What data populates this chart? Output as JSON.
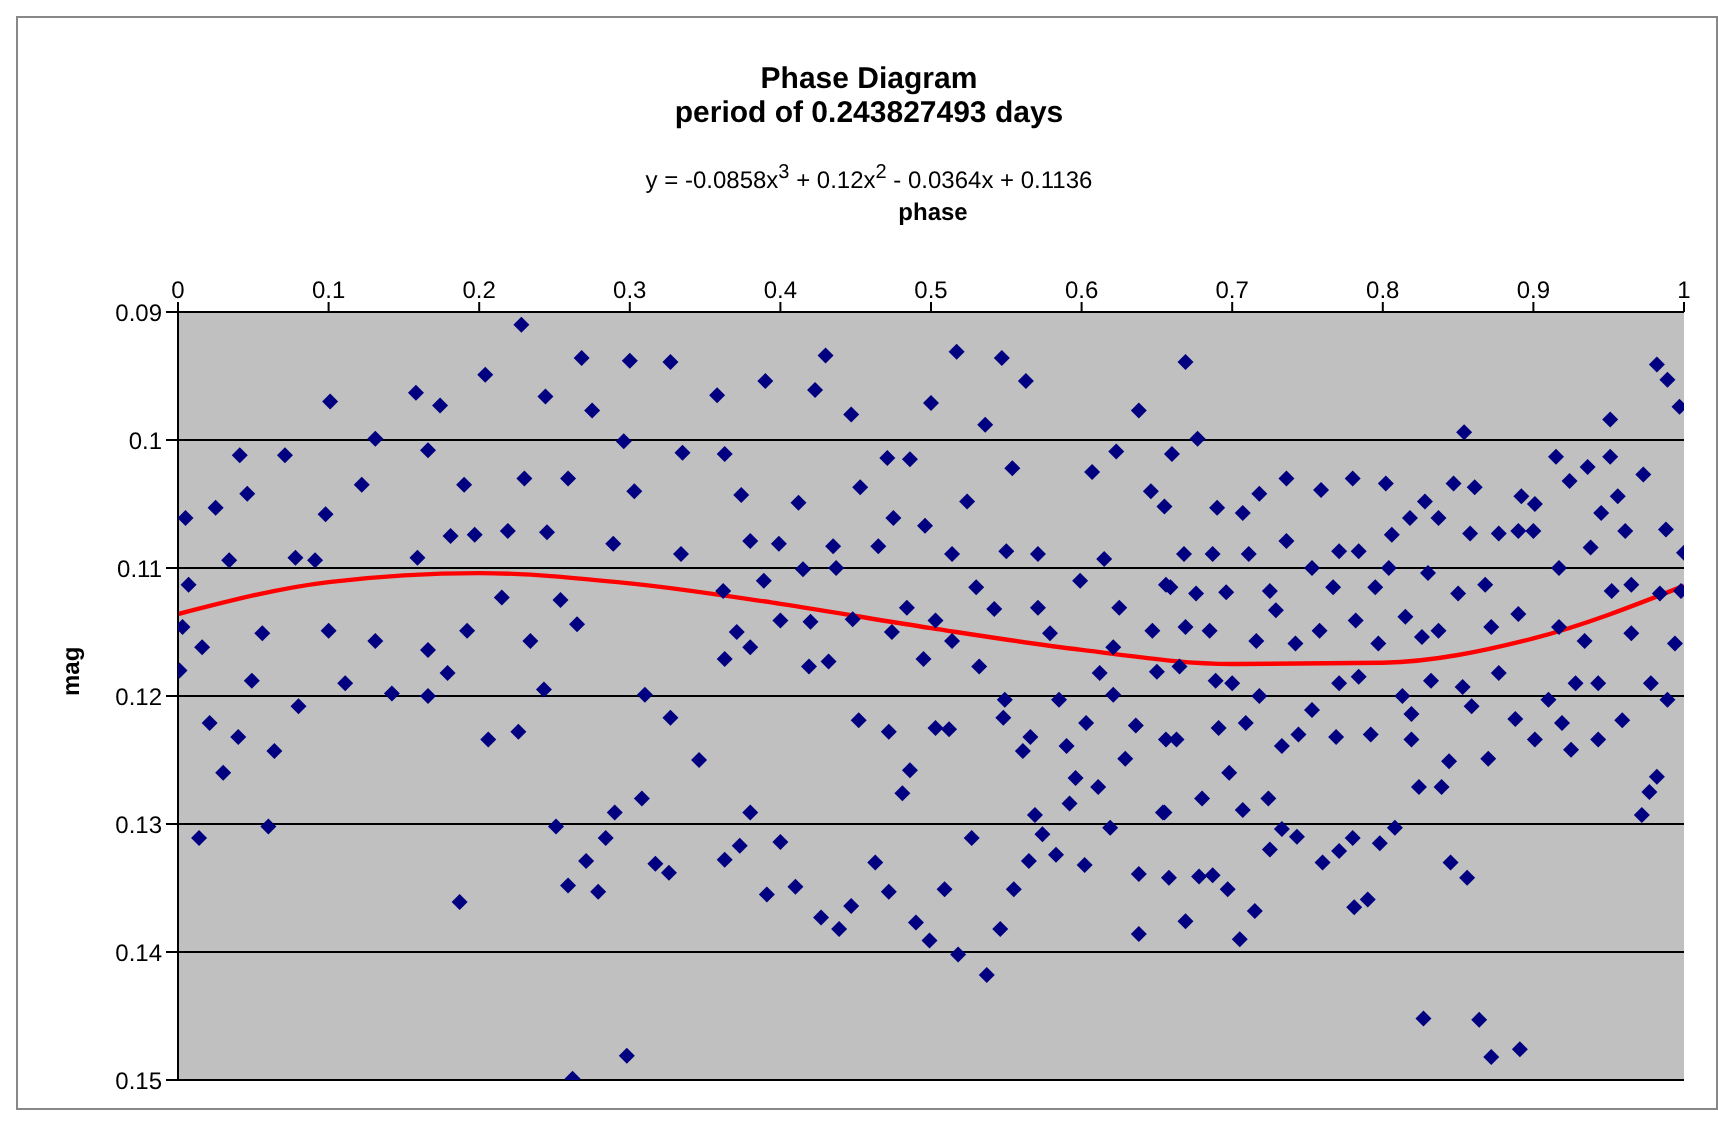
{
  "chart_data": {
    "type": "scatter",
    "title": "Phase Diagram",
    "subtitle": "period of 0.243827493 days",
    "xlabel": "phase",
    "ylabel": "mag",
    "annotations": [
      "y = -0.0858x$^{3}$ + 0.12x$^{2}$ - 0.0364x + 0.1136"
    ],
    "xlim": [
      0,
      1
    ],
    "xticks": [
      0,
      0.1,
      0.2,
      0.3,
      0.4,
      0.5,
      0.6,
      0.7,
      0.8,
      0.9,
      1
    ],
    "ylim": [
      0.15,
      0.09
    ],
    "yticks": [
      0.09,
      0.1,
      0.11,
      0.12,
      0.13,
      0.14,
      0.15
    ],
    "grid": "y",
    "series": [
      {
        "type": "scatter",
        "color": "#000080",
        "marker": "diamond",
        "x": [
          0.228,
          0.204,
          0.268,
          0.3,
          0.327,
          0.158,
          0.101,
          0.174,
          0.244,
          0.275,
          0.041,
          0.071,
          0.131,
          0.166,
          0.296,
          0.005,
          0.025,
          0.046,
          0.098,
          0.122,
          0.19,
          0.23,
          0.259,
          0.303,
          0.181,
          0.159,
          0.007,
          0.034,
          0.078,
          0.091,
          0.197,
          0.219,
          0.245,
          0.289,
          0.003,
          0.016,
          0.056,
          0.1,
          0.131,
          0.166,
          0.192,
          0.215,
          0.234,
          0.254,
          0.265,
          0.001,
          0.049,
          0.08,
          0.111,
          0.142,
          0.166,
          0.179,
          0.243,
          0.31,
          0.327,
          0.021,
          0.04,
          0.064,
          0.03,
          0.206,
          0.226,
          0.014,
          0.06,
          0.251,
          0.29,
          0.308,
          0.284,
          0.271,
          0.259,
          0.279,
          0.317,
          0.326,
          0.187,
          0.298,
          0.262,
          0.43,
          0.39,
          0.358,
          0.423,
          0.447,
          0.517,
          0.547,
          0.563,
          0.5,
          0.536,
          0.638,
          0.335,
          0.363,
          0.471,
          0.486,
          0.453,
          0.524,
          0.554,
          0.607,
          0.623,
          0.374,
          0.412,
          0.475,
          0.496,
          0.646,
          0.334,
          0.38,
          0.399,
          0.435,
          0.465,
          0.514,
          0.55,
          0.571,
          0.615,
          0.389,
          0.415,
          0.437,
          0.53,
          0.599,
          0.659,
          0.362,
          0.4,
          0.42,
          0.448,
          0.474,
          0.484,
          0.503,
          0.542,
          0.571,
          0.579,
          0.625,
          0.647,
          0.371,
          0.38,
          0.363,
          0.419,
          0.432,
          0.495,
          0.514,
          0.532,
          0.612,
          0.65,
          0.621,
          0.452,
          0.472,
          0.503,
          0.512,
          0.549,
          0.548,
          0.566,
          0.585,
          0.59,
          0.603,
          0.621,
          0.636,
          0.656,
          0.346,
          0.486,
          0.481,
          0.561,
          0.596,
          0.611,
          0.629,
          0.38,
          0.592,
          0.655,
          0.569,
          0.619,
          0.373,
          0.363,
          0.4,
          0.391,
          0.41,
          0.427,
          0.439,
          0.447,
          0.463,
          0.472,
          0.49,
          0.499,
          0.509,
          0.518,
          0.537,
          0.527,
          0.546,
          0.555,
          0.565,
          0.574,
          0.583,
          0.602,
          0.638,
          0.638,
          0.658,
          0.669,
          0.677,
          0.66,
          0.854,
          0.951,
          0.982,
          0.989,
          0.997,
          0.915,
          0.951,
          0.936,
          0.924,
          0.973,
          0.736,
          0.759,
          0.78,
          0.802,
          0.718,
          0.69,
          0.707,
          0.655,
          0.828,
          0.847,
          0.861,
          0.892,
          0.901,
          0.956,
          0.945,
          0.818,
          0.806,
          0.837,
          0.736,
          0.771,
          0.784,
          0.668,
          0.687,
          0.711,
          0.753,
          0.804,
          0.83,
          0.858,
          0.877,
          0.89,
          0.9,
          0.938,
          0.961,
          0.988,
          1,
          0.656,
          0.676,
          0.696,
          0.725,
          0.767,
          0.795,
          0.85,
          0.868,
          0.917,
          0.952,
          0.965,
          0.984,
          0.998,
          0.669,
          0.685,
          0.716,
          0.729,
          0.742,
          0.758,
          0.782,
          0.797,
          0.815,
          0.826,
          0.837,
          0.872,
          0.89,
          0.917,
          0.934,
          0.965,
          0.994,
          0.665,
          0.689,
          0.7,
          0.718,
          0.771,
          0.784,
          0.813,
          0.832,
          0.853,
          0.859,
          0.877,
          0.91,
          0.928,
          0.943,
          0.978,
          0.989,
          0.753,
          0.819,
          0.888,
          0.919,
          0.663,
          0.691,
          0.709,
          0.744,
          0.733,
          0.769,
          0.792,
          0.819,
          0.844,
          0.87,
          0.901,
          0.925,
          0.943,
          0.959,
          0.698,
          0.68,
          0.707,
          0.724,
          0.654,
          0.824,
          0.839,
          0.982,
          0.977,
          0.972,
          0.733,
          0.743,
          0.725,
          0.76,
          0.771,
          0.78,
          0.798,
          0.808,
          0.845,
          0.856,
          0.678,
          0.687,
          0.697,
          0.715,
          0.669,
          0.705,
          0.781,
          0.79,
          0.827,
          0.864,
          0.872,
          0.891
        ],
        "values": [
          0.091,
          0.0949,
          0.0936,
          0.0938,
          0.0939,
          0.0963,
          0.097,
          0.0973,
          0.0966,
          0.0977,
          0.1012,
          0.1012,
          0.0999,
          0.1008,
          0.1001,
          0.1061,
          0.1053,
          0.1042,
          0.1058,
          0.1035,
          0.1035,
          0.103,
          0.103,
          0.104,
          0.1075,
          0.1092,
          0.1113,
          0.1094,
          0.1092,
          0.1094,
          0.1074,
          0.1071,
          0.1072,
          0.1081,
          0.1146,
          0.1162,
          0.1151,
          0.1149,
          0.1157,
          0.1164,
          0.1149,
          0.1123,
          0.1157,
          0.1125,
          0.1144,
          0.118,
          0.1188,
          0.1208,
          0.119,
          0.1198,
          0.12,
          0.1182,
          0.1195,
          0.1199,
          0.1217,
          0.1221,
          0.1232,
          0.1243,
          0.126,
          0.1234,
          0.1228,
          0.1311,
          0.1302,
          0.1302,
          0.1291,
          0.128,
          0.1311,
          0.1329,
          0.1348,
          0.1353,
          0.1331,
          0.1338,
          0.1361,
          0.1481,
          0.1499,
          0.0934,
          0.0954,
          0.0965,
          0.0961,
          0.098,
          0.0931,
          0.0936,
          0.0954,
          0.0971,
          0.0988,
          0.0977,
          0.101,
          0.1011,
          0.1014,
          0.1015,
          0.1037,
          0.1048,
          0.1022,
          0.1025,
          0.1009,
          0.1043,
          0.1049,
          0.1061,
          0.1067,
          0.104,
          0.1089,
          0.1079,
          0.1081,
          0.1083,
          0.1083,
          0.1089,
          0.1087,
          0.1089,
          0.1093,
          0.111,
          0.1101,
          0.11,
          0.1115,
          0.111,
          0.1115,
          0.1118,
          0.1141,
          0.1142,
          0.114,
          0.115,
          0.1131,
          0.1141,
          0.1132,
          0.1131,
          0.1151,
          0.1131,
          0.1149,
          0.115,
          0.1162,
          0.1171,
          0.1177,
          0.1173,
          0.1171,
          0.1157,
          0.1177,
          0.1182,
          0.1181,
          0.1162,
          0.1219,
          0.1228,
          0.1225,
          0.1226,
          0.1203,
          0.1217,
          0.1232,
          0.1203,
          0.1239,
          0.1221,
          0.1199,
          0.1223,
          0.1234,
          0.125,
          0.1258,
          0.1276,
          0.1243,
          0.1264,
          0.1271,
          0.1249,
          0.1291,
          0.1284,
          0.1291,
          0.1293,
          0.1303,
          0.1317,
          0.1328,
          0.1314,
          0.1355,
          0.1349,
          0.1373,
          0.1382,
          0.1364,
          0.133,
          0.1353,
          0.1377,
          0.1391,
          0.1351,
          0.1402,
          0.1418,
          0.1311,
          0.1382,
          0.1351,
          0.1329,
          0.1308,
          0.1324,
          0.1332,
          0.1339,
          0.1386,
          0.1342,
          0.0939,
          0.0999,
          0.1011,
          0.0994,
          0.0984,
          0.0941,
          0.0953,
          0.0974,
          0.1013,
          0.1013,
          0.1021,
          0.1032,
          0.1027,
          0.103,
          0.1039,
          0.103,
          0.1034,
          0.1042,
          0.1053,
          0.1057,
          0.1052,
          0.1048,
          0.1034,
          0.1037,
          0.1044,
          0.105,
          0.1044,
          0.1057,
          0.1061,
          0.1074,
          0.1061,
          0.1079,
          0.1087,
          0.1087,
          0.1089,
          0.1089,
          0.1089,
          0.11,
          0.11,
          0.1104,
          0.1073,
          0.1073,
          0.1071,
          0.1071,
          0.1084,
          0.1071,
          0.107,
          0.1088,
          0.1113,
          0.112,
          0.1119,
          0.1118,
          0.1115,
          0.1115,
          0.112,
          0.1113,
          0.11,
          0.1118,
          0.1113,
          0.112,
          0.1118,
          0.1146,
          0.1149,
          0.1157,
          0.1133,
          0.1159,
          0.1149,
          0.1141,
          0.1159,
          0.1138,
          0.1154,
          0.1149,
          0.1146,
          0.1136,
          0.1146,
          0.1157,
          0.1151,
          0.1159,
          0.1177,
          0.1188,
          0.119,
          0.12,
          0.119,
          0.1185,
          0.12,
          0.1188,
          0.1193,
          0.1208,
          0.1182,
          0.1203,
          0.119,
          0.119,
          0.119,
          0.1203,
          0.1211,
          0.1214,
          0.1218,
          0.1221,
          0.1234,
          0.1225,
          0.1221,
          0.123,
          0.1239,
          0.1232,
          0.123,
          0.1234,
          0.1251,
          0.1249,
          0.1234,
          0.1242,
          0.1234,
          0.1219,
          0.126,
          0.128,
          0.1289,
          0.128,
          0.1291,
          0.1271,
          0.1271,
          0.1263,
          0.1275,
          0.1293,
          0.1304,
          0.131,
          0.132,
          0.133,
          0.1321,
          0.1311,
          0.1315,
          0.1303,
          0.133,
          0.1342,
          0.1341,
          0.134,
          0.1351,
          0.1368,
          0.1376,
          0.139,
          0.1365,
          0.1359,
          0.1452,
          0.1453,
          0.1482,
          0.1476
        ]
      },
      {
        "type": "line",
        "color": "#ff0000",
        "marker": "none",
        "x": [
          0,
          0.1,
          0.2,
          0.3,
          0.4,
          0.5,
          0.6,
          0.7,
          0.8,
          0.9,
          1
        ],
        "values": [
          0.1136,
          0.1111,
          0.1104,
          0.1112,
          0.1128,
          0.1147,
          0.1164,
          0.1175,
          0.1174,
          0.1155,
          0.1114
        ]
      }
    ]
  }
}
